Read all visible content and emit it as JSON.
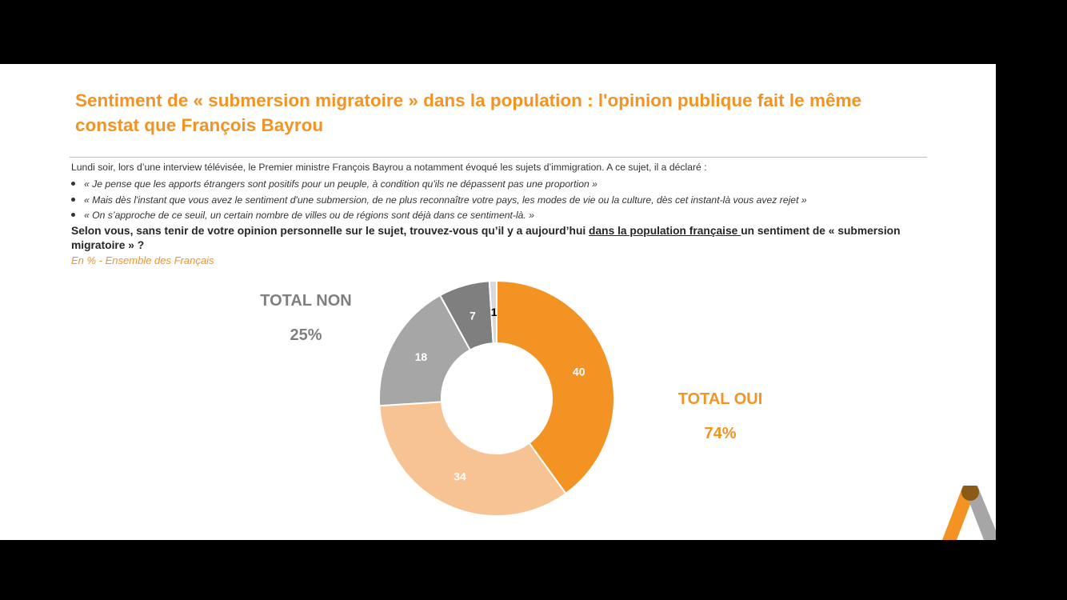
{
  "slide": {
    "title": "Sentiment de « submersion migratoire » dans la population : l'opinion publique fait le même constat que François Bayrou",
    "intro": "Lundi soir, lors d’une interview télévisée, le Premier ministre François Bayrou a notamment évoqué les sujets d’immigration. A ce sujet, il a déclaré :",
    "quotes": [
      "« Je pense que les apports étrangers sont positifs pour un peuple, à condition qu'ils ne dépassent pas une proportion »",
      "« Mais dès l'instant que vous avez le sentiment d'une submersion, de ne plus reconnaître votre pays, les modes de vie ou la culture, dès cet instant-là vous avez rejet »",
      "« On s’approche de ce seuil, un certain nombre de villes ou de régions sont déjà dans ce sentiment-là. »"
    ],
    "question_part1": "Selon vous, sans tenir de votre opinion personnelle sur le sujet, trouvez-vous qu’il y a aujourd’hui ",
    "question_underlined": "dans la population française ",
    "question_part2": "un sentiment de « submersion migratoire » ?",
    "subtitle": "En % - Ensemble des Français",
    "total_non_label": "TOTAL NON",
    "total_non_value": "25%",
    "total_oui_label": "TOTAL OUI",
    "total_oui_value": "74%"
  },
  "colors": {
    "accent": "#f39323",
    "grey_text": "#7f7f7f",
    "slide_bg": "#ffffff",
    "frame_bg": "#000000"
  },
  "chart_data": {
    "type": "pie",
    "donut": true,
    "start_angle_deg": 0,
    "direction": "clockwise",
    "slices": [
      {
        "value": 40,
        "label": "40",
        "color": "#f39323",
        "label_color": "#ffffff"
      },
      {
        "value": 34,
        "label": "34",
        "color": "#f8c392",
        "label_color": "#ffffff"
      },
      {
        "value": 18,
        "label": "18",
        "color": "#a6a6a6",
        "label_color": "#ffffff"
      },
      {
        "value": 7,
        "label": "7",
        "color": "#7f7f7f",
        "label_color": "#ffffff"
      },
      {
        "value": 1,
        "label": "1",
        "color": "#d9d9d9",
        "label_color": "#000000"
      }
    ]
  }
}
